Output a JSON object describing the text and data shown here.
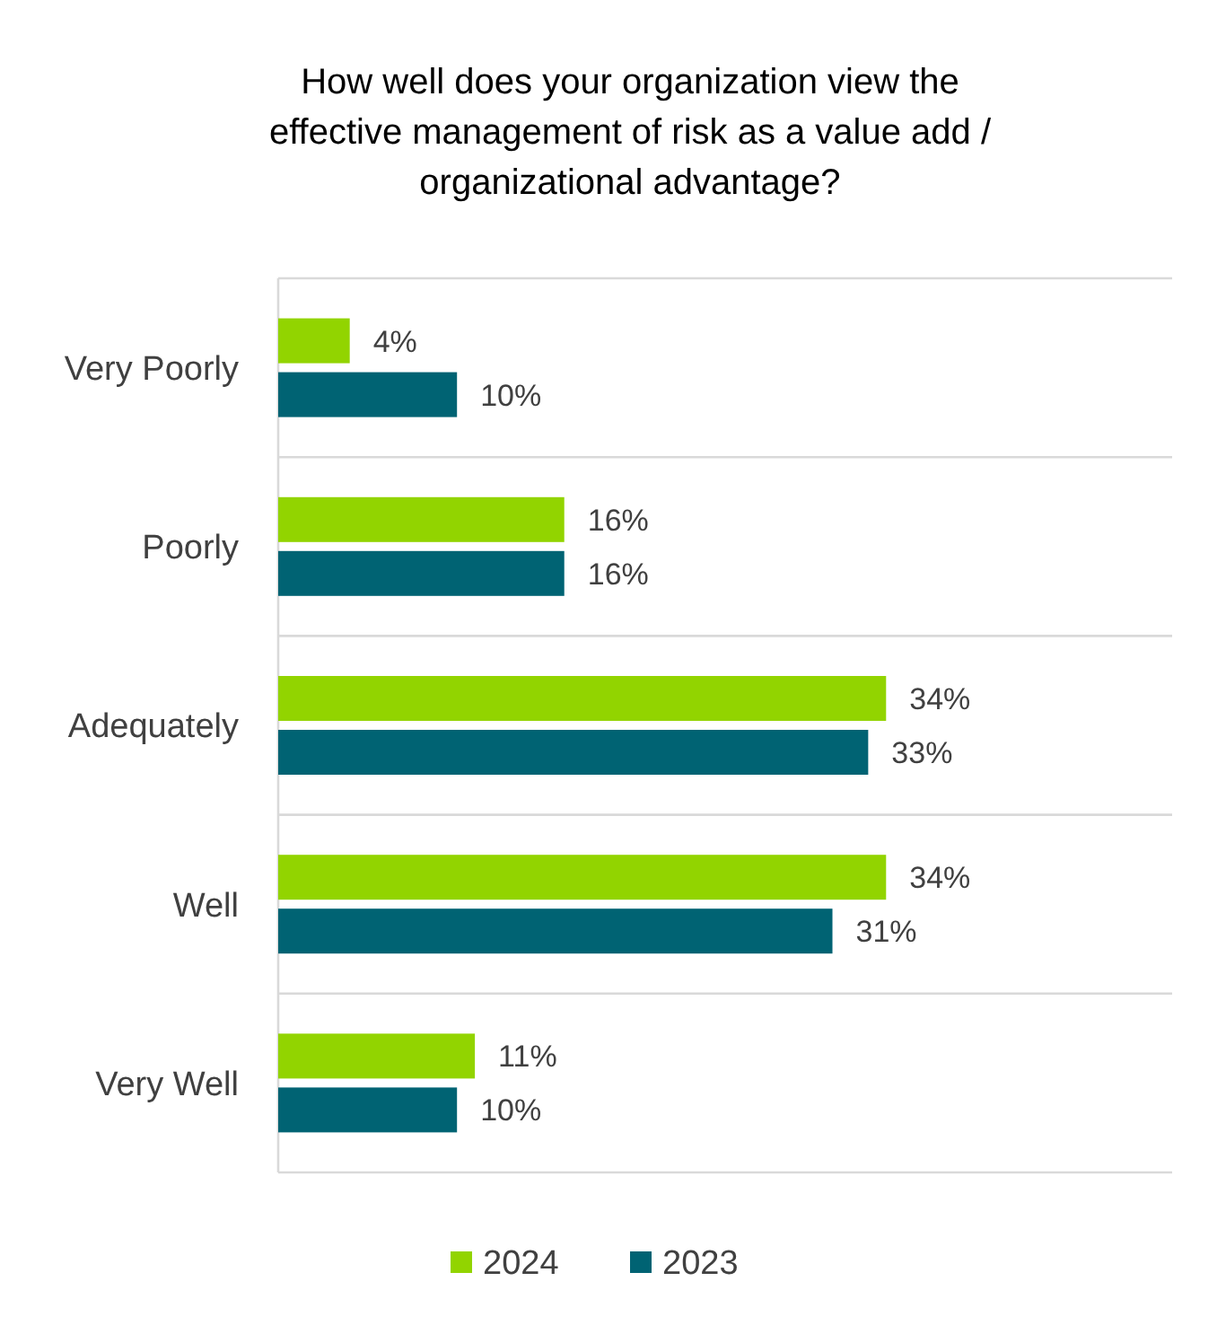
{
  "chart_data": {
    "type": "bar",
    "orientation": "horizontal",
    "title": "How well does your organization view the\neffective management of risk as a value add /\norganizational advantage?",
    "categories": [
      "Very Poorly",
      "Poorly",
      "Adequately",
      "Well",
      "Very Well"
    ],
    "series": [
      {
        "name": "2024",
        "color": "#92d400",
        "values": [
          4,
          16,
          34,
          34,
          11
        ],
        "value_labels": [
          "4%",
          "16%",
          "34%",
          "34%",
          "11%"
        ]
      },
      {
        "name": "2023",
        "color": "#006373",
        "values": [
          10,
          16,
          33,
          31,
          10
        ],
        "value_labels": [
          "10%",
          "16%",
          "33%",
          "31%",
          "10%"
        ]
      }
    ],
    "xlim": [
      0,
      50
    ],
    "grid": "y",
    "legend": "bottom",
    "tick_labels": "y"
  }
}
